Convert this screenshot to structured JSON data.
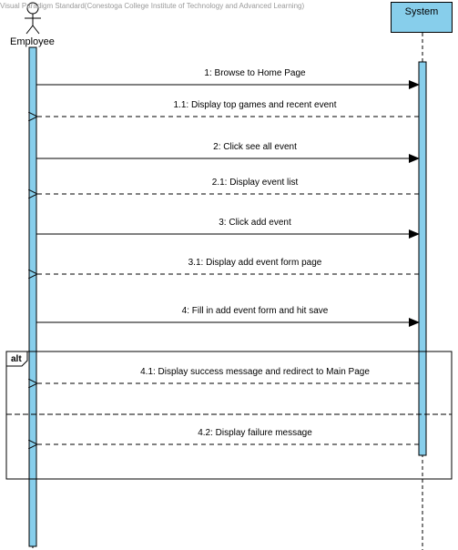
{
  "watermark": "Visual Paradigm Standard(Conestoga College Institute of Technology and Advanced Learning)",
  "lifelines": {
    "actor": {
      "name": "Employee"
    },
    "system": {
      "name": "System"
    }
  },
  "fragment": {
    "operator": "alt"
  },
  "messages": [
    {
      "label": "1: Browse to Home Page",
      "kind": "call"
    },
    {
      "label": "1.1: Display top games and recent event",
      "kind": "return"
    },
    {
      "label": "2: Click see all event",
      "kind": "call"
    },
    {
      "label": "2.1: Display event list",
      "kind": "return"
    },
    {
      "label": "3: Click add event",
      "kind": "call"
    },
    {
      "label": "3.1: Display add event form page",
      "kind": "return"
    },
    {
      "label": "4: Fill in add event form and hit save",
      "kind": "call"
    },
    {
      "label": "4.1: Display success message and redirect to Main Page",
      "kind": "return"
    },
    {
      "label": "4.2: Display failure message",
      "kind": "return"
    }
  ],
  "colors": {
    "lifeline_box": "#87ceeb",
    "activation": "#87ceeb",
    "line": "#000000"
  }
}
